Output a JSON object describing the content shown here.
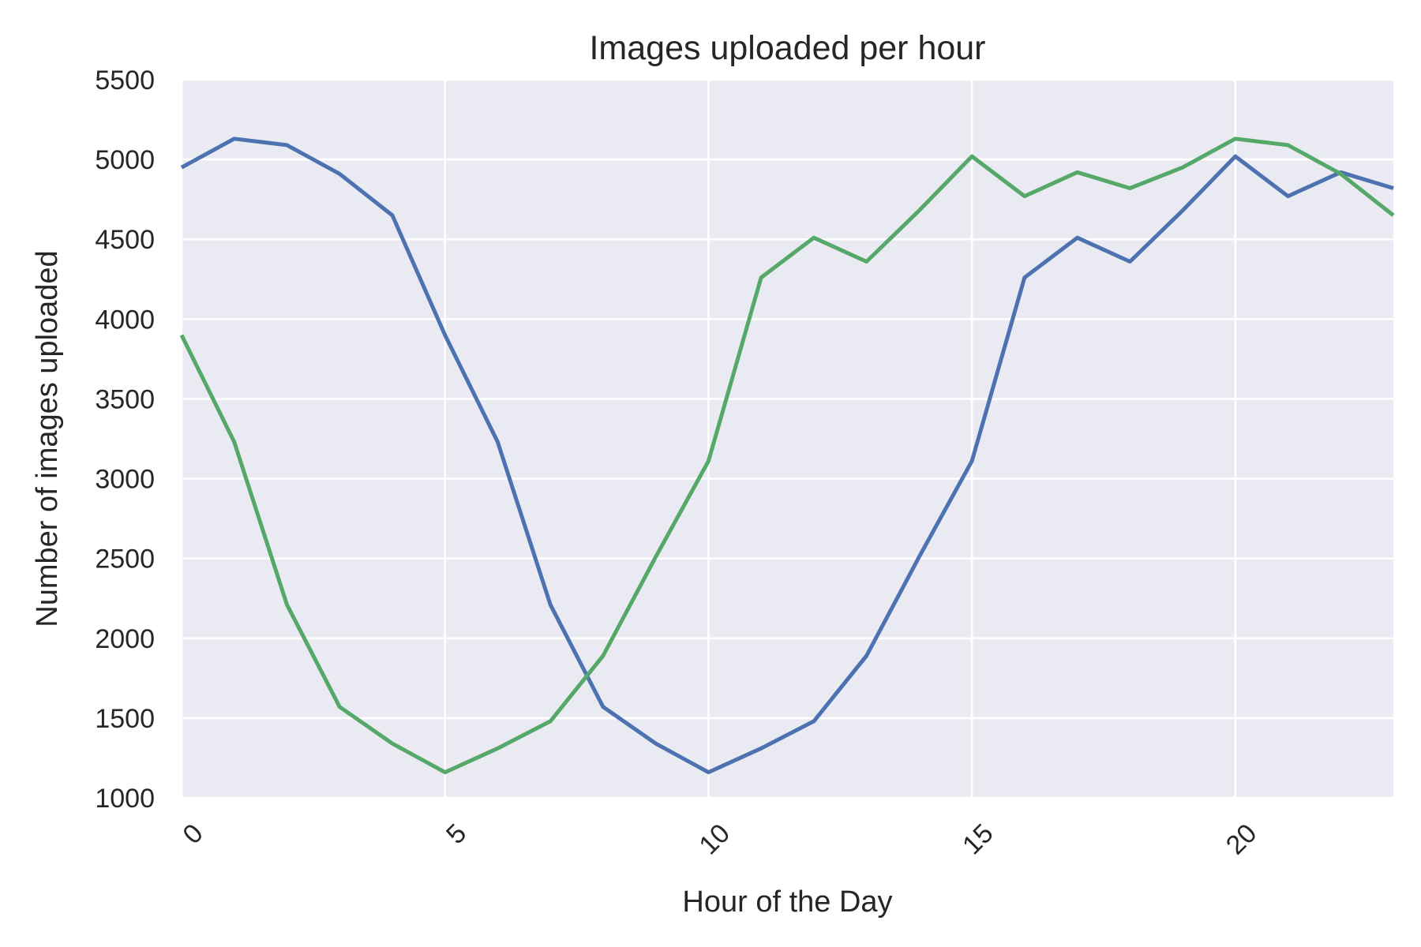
{
  "chart_data": {
    "type": "line",
    "title": "Images uploaded per hour",
    "xlabel": "Hour of the Day",
    "ylabel": "Number of images uploaded",
    "xlim": [
      0,
      23
    ],
    "ylim": [
      1000,
      5500
    ],
    "xticks": [
      0,
      5,
      10,
      15,
      20
    ],
    "yticks": [
      1000,
      1500,
      2000,
      2500,
      3000,
      3500,
      4000,
      4500,
      5000,
      5500
    ],
    "xtick_rotation_deg": 45,
    "grid": true,
    "legend": "none",
    "background": "#eaeaf2",
    "grid_color": "#ffffff",
    "x": [
      0,
      1,
      2,
      3,
      4,
      5,
      6,
      7,
      8,
      9,
      10,
      11,
      12,
      13,
      14,
      15,
      16,
      17,
      18,
      19,
      20,
      21,
      22,
      23
    ],
    "series": [
      {
        "color": "#4c72b0",
        "values": [
          4950,
          5130,
          5090,
          4910,
          4650,
          3900,
          3230,
          2210,
          1570,
          1340,
          1160,
          1310,
          1480,
          1890,
          2510,
          3110,
          4260,
          4510,
          4360,
          4680,
          5020,
          4770,
          4920,
          4820
        ]
      },
      {
        "color": "#55a868",
        "values": [
          3900,
          3230,
          2210,
          1570,
          1340,
          1160,
          1310,
          1480,
          1890,
          2510,
          3110,
          4260,
          4510,
          4360,
          4680,
          5020,
          4770,
          4920,
          4820,
          4950,
          5130,
          5090,
          4910,
          4650
        ]
      }
    ]
  }
}
